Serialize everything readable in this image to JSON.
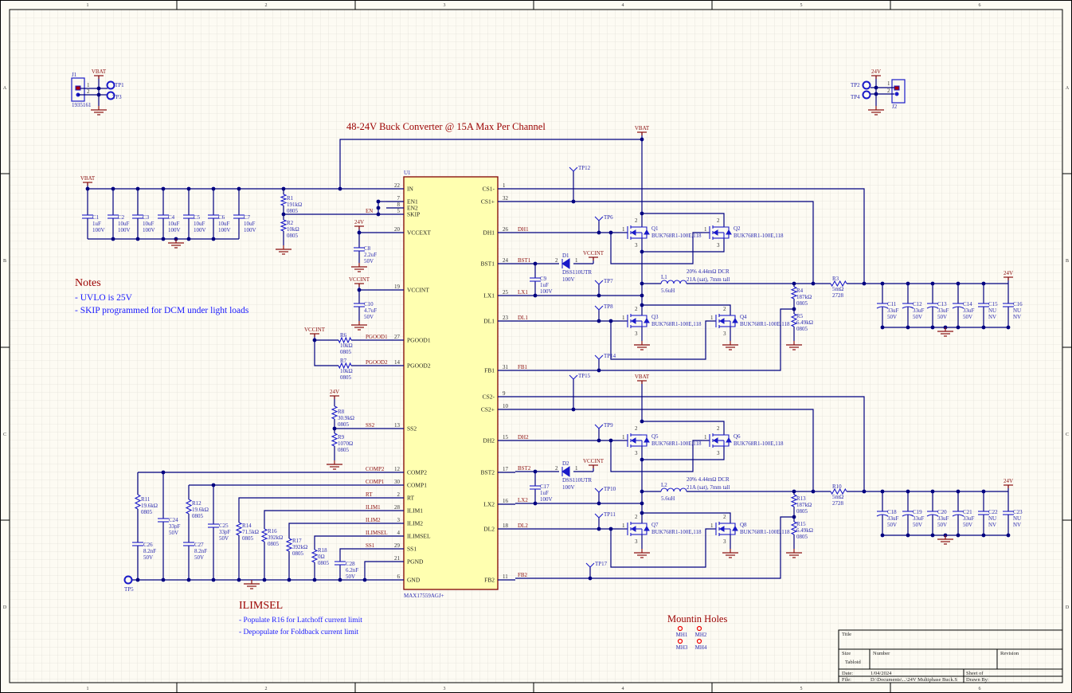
{
  "zones": {
    "columns": [
      "1",
      "2",
      "3",
      "4",
      "5",
      "6"
    ],
    "rows": [
      "A",
      "B",
      "C",
      "D"
    ]
  },
  "title_note": "48-24V Buck Converter @ 15A Max Per Channel",
  "notes": {
    "heading": "Notes",
    "lines": [
      "- UVLO is 25V",
      "- SKIP programmed for DCM under light loads"
    ]
  },
  "ilimsel_notes": {
    "heading": "ILIMSEL",
    "lines": [
      "- Populate R16 for Latchoff current limit",
      "- Depopulate for Foldback current limit"
    ]
  },
  "mounting": {
    "heading": "Mountin Holes",
    "holes": [
      "MH1",
      "MH2",
      "MH3",
      "MH4"
    ]
  },
  "power": {
    "vbat": "VBAT",
    "v24": "24V",
    "vccint": "VCCINT"
  },
  "connectors": {
    "J1": {
      "ref": "J1",
      "part": "1935161",
      "pins": [
        "1",
        "2"
      ]
    },
    "J2": {
      "ref": "J2",
      "pins": [
        "1",
        "2"
      ]
    }
  },
  "test_points": {
    "TP1": "TP1",
    "TP2": "TP2",
    "TP3": "TP3",
    "TP4": "TP4",
    "TP5": "TP5",
    "TP6": "TP6",
    "TP7": "TP7",
    "TP8": "TP8",
    "TP9": "TP9",
    "TP10": "TP10",
    "TP11": "TP11",
    "TP12": "TP12",
    "TP14": "TP14",
    "TP15": "TP15",
    "TP17": "TP17"
  },
  "nets": {
    "EN": "EN",
    "PGOOD1": "PGOOD1",
    "PGOOD2": "PGOOD2",
    "SS2": "SS2",
    "COMP2": "COMP2",
    "COMP1": "COMP1",
    "RT": "RT",
    "ILIM1": "ILIM1",
    "ILIM2": "ILIM2",
    "ILIMSEL": "ILIMSEL",
    "SS1": "SS1",
    "DH1": "DH1",
    "BST1": "BST1",
    "LX1": "LX1",
    "DL1": "DL1",
    "FB1": "FB1",
    "DH2": "DH2",
    "BST2": "BST2",
    "LX2": "LX2",
    "DL2": "DL2",
    "FB2": "FB2"
  },
  "ic": {
    "ref": "U1",
    "part": "MAX17559AGJ+",
    "left_pins": [
      {
        "name": "IN",
        "num": "22"
      },
      {
        "name": "EN1",
        "num": "7"
      },
      {
        "name": "EN2",
        "num": "8"
      },
      {
        "name": "SKIP",
        "num": "5"
      },
      {
        "name": "VCCEXT",
        "num": "20"
      },
      {
        "name": "VCCINT",
        "num": "19"
      },
      {
        "name": "PGOOD1",
        "num": "27"
      },
      {
        "name": "PGOOD2",
        "num": "14"
      },
      {
        "name": "SS2",
        "num": "13"
      },
      {
        "name": "COMP2",
        "num": "12"
      },
      {
        "name": "COMP1",
        "num": "30"
      },
      {
        "name": "RT",
        "num": "2"
      },
      {
        "name": "ILIM1",
        "num": "28"
      },
      {
        "name": "ILIM2",
        "num": "3"
      },
      {
        "name": "ILIMSEL",
        "num": "4"
      },
      {
        "name": "SS1",
        "num": "29"
      },
      {
        "name": "PGND",
        "num": "21"
      },
      {
        "name": "GND",
        "num": "6"
      }
    ],
    "right_pins": [
      {
        "name": "CS1-",
        "num": "1"
      },
      {
        "name": "CS1+",
        "num": "32"
      },
      {
        "name": "DH1",
        "num": "26"
      },
      {
        "name": "BST1",
        "num": "24"
      },
      {
        "name": "LX1",
        "num": "25"
      },
      {
        "name": "DL1",
        "num": "23"
      },
      {
        "name": "FB1",
        "num": "31"
      },
      {
        "name": "CS2-",
        "num": "9"
      },
      {
        "name": "CS2+",
        "num": "10"
      },
      {
        "name": "DH2",
        "num": "15"
      },
      {
        "name": "BST2",
        "num": "17"
      },
      {
        "name": "LX2",
        "num": "16"
      },
      {
        "name": "DL2",
        "num": "18"
      },
      {
        "name": "FB2",
        "num": "11"
      }
    ]
  },
  "mosfet_pins": [
    "1",
    "2",
    "3"
  ],
  "diode_pins": [
    "2",
    "1"
  ],
  "components": {
    "C1": [
      "C1",
      "1uF",
      "100V"
    ],
    "C2": [
      "C2",
      "10uF",
      "100V"
    ],
    "C3": [
      "C3",
      "10uF",
      "100V"
    ],
    "C4": [
      "C4",
      "10uF",
      "100V"
    ],
    "C5": [
      "C5",
      "10uF",
      "100V"
    ],
    "C6": [
      "C6",
      "10uF",
      "100V"
    ],
    "C7": [
      "C7",
      "10uF",
      "100V"
    ],
    "R1": [
      "R1",
      "191kΩ",
      "0805"
    ],
    "R2": [
      "R2",
      "10kΩ",
      "0805"
    ],
    "C8": [
      "C8",
      "2.2uF",
      "50V"
    ],
    "C10": [
      "C10",
      "4.7uF",
      "50V"
    ],
    "R6": [
      "R6",
      "10kΩ",
      "0805"
    ],
    "R7": [
      "R7",
      "10kΩ",
      "0805"
    ],
    "R8": [
      "R8",
      "30.9kΩ",
      "0805"
    ],
    "R9": [
      "R9",
      "1070Ω",
      "0805"
    ],
    "R11": [
      "R11",
      "19.6kΩ",
      "0805"
    ],
    "R12": [
      "R12",
      "19.6kΩ",
      "0805"
    ],
    "C24": [
      "C24",
      "33pF",
      "50V"
    ],
    "C25": [
      "C25",
      "33pF",
      "50V"
    ],
    "C26": [
      "C26",
      "8.2nF",
      "50V"
    ],
    "C27": [
      "C27",
      "8.2nF",
      "50V"
    ],
    "R14": [
      "R14",
      "71.5kΩ",
      "0805"
    ],
    "R16": [
      "R16",
      "392kΩ",
      "0805"
    ],
    "R17": [
      "R17",
      "392kΩ",
      "0805"
    ],
    "R18": [
      "R18",
      "0Ω",
      "0805"
    ],
    "C28": [
      "C28",
      "6.2nF",
      "50V"
    ],
    "Q1": [
      "Q1",
      "BUK768R1-100E,118"
    ],
    "Q2": [
      "Q2",
      "BUK768R1-100E,118"
    ],
    "Q3": [
      "Q3",
      "BUK768R1-100E,118"
    ],
    "Q4": [
      "Q4",
      "BUK768R1-100E,118"
    ],
    "Q5": [
      "Q5",
      "BUK768R1-100E,118"
    ],
    "Q6": [
      "Q6",
      "BUK768R1-100E,118"
    ],
    "Q7": [
      "Q7",
      "BUK768R1-100E,118"
    ],
    "Q8": [
      "Q8",
      "BUK768R1-100E,118"
    ],
    "D1": [
      "D1",
      "DSS110UTR",
      "100V"
    ],
    "D2": [
      "D2",
      "DSS110UTR",
      "100V"
    ],
    "C9": [
      "C9",
      "1uF",
      "100V"
    ],
    "C17": [
      "C17",
      "1uF",
      "100V"
    ],
    "L1": [
      "L1",
      "5.6uH",
      "20% 4.44mΩ DCR",
      "21A (sat), 7mm tall"
    ],
    "L2": [
      "L2",
      "5.6uH",
      "20% 4.44mΩ DCR",
      "21A (sat), 7mm tall"
    ],
    "R3": [
      "R3",
      "5mΩ",
      "2728"
    ],
    "R10": [
      "R10",
      "5mΩ",
      "2728"
    ],
    "R4": [
      "R4",
      "187kΩ",
      "0805"
    ],
    "R5": [
      "R5",
      "6.49kΩ",
      "0805"
    ],
    "R13": [
      "R13",
      "187kΩ",
      "0805"
    ],
    "R15": [
      "R15",
      "6.49kΩ",
      "0805"
    ],
    "C11": [
      "C11",
      "33uF",
      "50V"
    ],
    "C12": [
      "C12",
      "33uF",
      "50V"
    ],
    "C13": [
      "C13",
      "33uF",
      "50V"
    ],
    "C14": [
      "C14",
      "33uF",
      "50V"
    ],
    "C15": [
      "C15",
      "NU",
      "NV"
    ],
    "C16": [
      "C16",
      "NU",
      "NV"
    ],
    "C18": [
      "C18",
      "33uF",
      "50V"
    ],
    "C19": [
      "C19",
      "33uF",
      "50V"
    ],
    "C20": [
      "C20",
      "33uF",
      "50V"
    ],
    "C21": [
      "C21",
      "33uF",
      "50V"
    ],
    "C22": [
      "C22",
      "NU",
      "NV"
    ],
    "C23": [
      "C23",
      "NU",
      "NV"
    ]
  },
  "title_block": {
    "title_label": "Title",
    "size_label": "Size",
    "size_value": "Tabloid",
    "number_label": "Number",
    "revision_label": "Revision",
    "date_label": "Date:",
    "date_value": "1/04/2024",
    "sheet_label": "Sheet   of",
    "file_label": "File:",
    "file_value": "D:\\Documents\\...\\24V Multiphase Buck.S",
    "drawn_by_label": "Drawn By:"
  },
  "colors": {
    "wire": "#000080",
    "component": "#1a1ac8",
    "net_label": "#8b1010",
    "ic_fill": "#ffffb0",
    "ic_border": "#800000",
    "sheet": "#fdfbf3"
  }
}
